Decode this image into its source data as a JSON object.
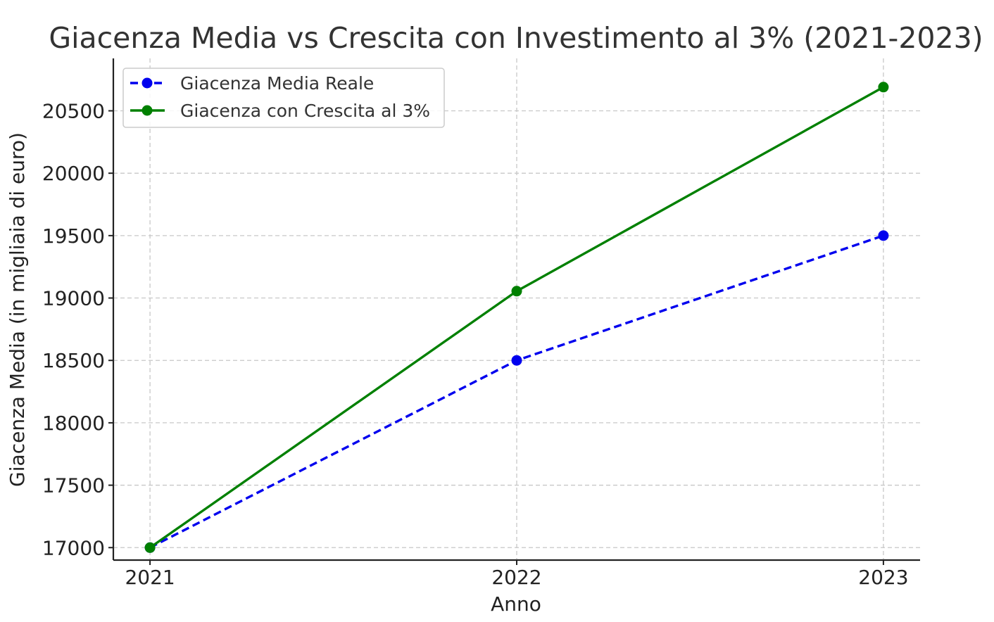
{
  "chart_data": {
    "type": "line",
    "title": "Giacenza Media vs Crescita con Investimento al 3% (2021-2023)",
    "xlabel": "Anno",
    "ylabel": "Giacenza Media (in migliaia di euro)",
    "x": [
      2021,
      2022,
      2023
    ],
    "x_tick_labels": [
      "2021",
      "2022",
      "2023"
    ],
    "y_ticks": [
      17000,
      17500,
      18000,
      18500,
      19000,
      19500,
      20000,
      20500
    ],
    "y_tick_labels": [
      "17000",
      "17500",
      "18000",
      "18500",
      "19000",
      "19500",
      "20000",
      "20500"
    ],
    "xlim": [
      2020.9,
      2023.1
    ],
    "ylim": [
      16900,
      20920
    ],
    "grid": true,
    "legend_position": "top-left",
    "series": [
      {
        "name": "Giacenza Media Reale",
        "values": [
          17000,
          18500,
          19500
        ],
        "color": "#0000ee",
        "line_style": "dashed",
        "marker": "circle"
      },
      {
        "name": "Giacenza con Crescita al 3%",
        "values": [
          17000,
          19055,
          20690
        ],
        "color": "#008000",
        "line_style": "solid",
        "marker": "circle"
      }
    ]
  }
}
